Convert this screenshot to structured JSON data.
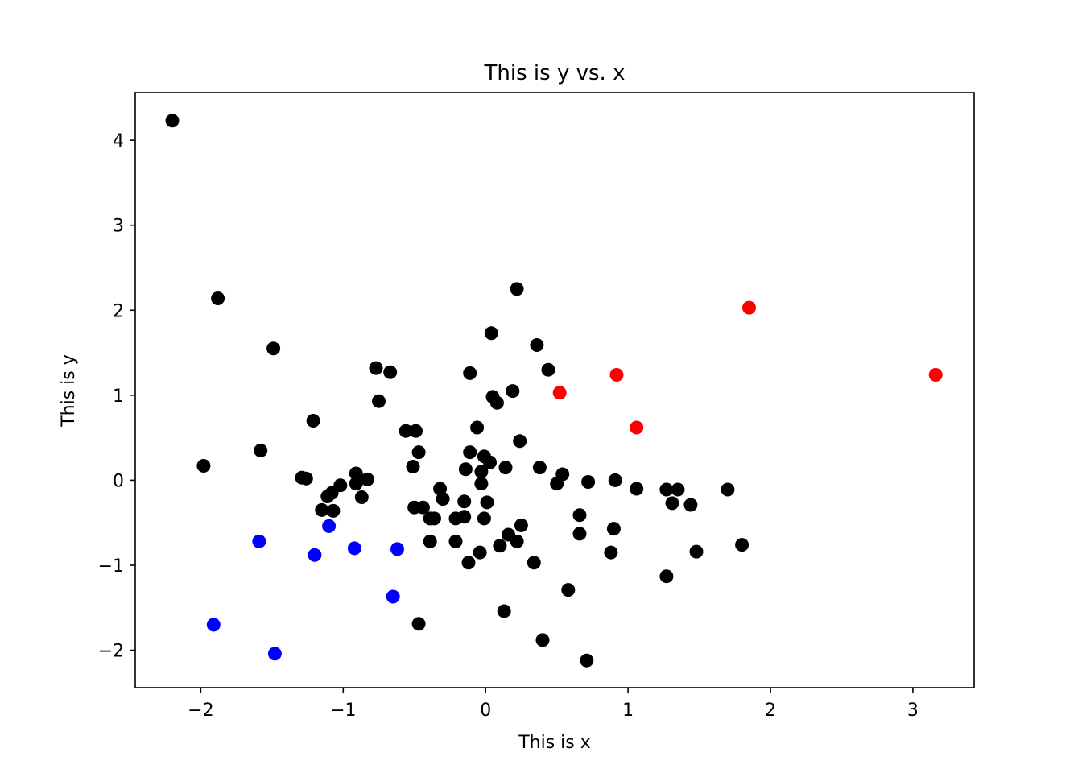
{
  "chart_data": {
    "type": "scatter",
    "title": "This is y vs. x",
    "xlabel": "This is x",
    "ylabel": "This is y",
    "xlim": [
      -2.46,
      3.43
    ],
    "ylim": [
      -2.44,
      4.56
    ],
    "grid": false,
    "x_ticks": [
      -2,
      -1,
      0,
      1,
      2,
      3
    ],
    "x_tick_labels": [
      "−2",
      "−1",
      "0",
      "1",
      "2",
      "3"
    ],
    "y_ticks": [
      -2,
      -1,
      0,
      1,
      2,
      3,
      4
    ],
    "y_tick_labels": [
      "−2",
      "−1",
      "0",
      "1",
      "2",
      "3",
      "4"
    ],
    "series": [
      {
        "color": "#000000",
        "points": [
          [
            -2.2,
            4.23
          ],
          [
            -1.88,
            2.14
          ],
          [
            -1.98,
            0.17
          ],
          [
            -1.58,
            0.35
          ],
          [
            -1.49,
            1.55
          ],
          [
            -1.21,
            0.7
          ],
          [
            -1.29,
            0.03
          ],
          [
            -1.26,
            0.02
          ],
          [
            -1.15,
            -0.35
          ],
          [
            -1.11,
            -0.19
          ],
          [
            -1.08,
            -0.15
          ],
          [
            -1.07,
            -0.36
          ],
          [
            -1.02,
            -0.06
          ],
          [
            -0.91,
            -0.04
          ],
          [
            -0.91,
            0.08
          ],
          [
            -0.87,
            -0.2
          ],
          [
            -0.83,
            0.01
          ],
          [
            -0.77,
            1.32
          ],
          [
            -0.75,
            0.93
          ],
          [
            -0.67,
            1.27
          ],
          [
            -0.56,
            0.58
          ],
          [
            -0.49,
            0.58
          ],
          [
            -0.51,
            0.16
          ],
          [
            -0.47,
            0.33
          ],
          [
            -0.5,
            -0.32
          ],
          [
            -0.44,
            -0.32
          ],
          [
            -0.39,
            -0.45
          ],
          [
            -0.36,
            -0.45
          ],
          [
            -0.32,
            -0.1
          ],
          [
            -0.3,
            -0.22
          ],
          [
            -0.39,
            -0.72
          ],
          [
            -0.47,
            -1.69
          ],
          [
            -0.21,
            -0.45
          ],
          [
            -0.21,
            -0.72
          ],
          [
            -0.15,
            -0.25
          ],
          [
            -0.15,
            -0.43
          ],
          [
            -0.14,
            0.13
          ],
          [
            -0.12,
            -0.97
          ],
          [
            -0.11,
            1.26
          ],
          [
            -0.11,
            0.33
          ],
          [
            -0.06,
            0.62
          ],
          [
            -0.03,
            0.1
          ],
          [
            -0.03,
            -0.04
          ],
          [
            -0.01,
            0.28
          ],
          [
            -0.01,
            -0.45
          ],
          [
            0.01,
            -0.26
          ],
          [
            0.03,
            0.21
          ],
          [
            -0.04,
            -0.85
          ],
          [
            0.04,
            1.73
          ],
          [
            0.05,
            0.98
          ],
          [
            0.08,
            0.91
          ],
          [
            0.1,
            -0.77
          ],
          [
            0.13,
            -1.54
          ],
          [
            0.14,
            0.15
          ],
          [
            0.16,
            -0.64
          ],
          [
            0.19,
            1.05
          ],
          [
            0.22,
            2.25
          ],
          [
            0.24,
            0.46
          ],
          [
            0.22,
            -0.72
          ],
          [
            0.25,
            -0.53
          ],
          [
            0.34,
            -0.97
          ],
          [
            0.36,
            1.59
          ],
          [
            0.38,
            0.15
          ],
          [
            0.4,
            -1.88
          ],
          [
            0.44,
            1.3
          ],
          [
            0.5,
            -0.04
          ],
          [
            0.54,
            0.07
          ],
          [
            0.58,
            -1.29
          ],
          [
            0.66,
            -0.41
          ],
          [
            0.66,
            -0.63
          ],
          [
            0.72,
            -0.02
          ],
          [
            0.71,
            -2.12
          ],
          [
            0.88,
            -0.85
          ],
          [
            0.91,
            0.0
          ],
          [
            0.9,
            -0.57
          ],
          [
            1.06,
            -0.1
          ],
          [
            1.27,
            -0.11
          ],
          [
            1.31,
            -0.27
          ],
          [
            1.35,
            -0.11
          ],
          [
            1.27,
            -1.13
          ],
          [
            1.44,
            -0.29
          ],
          [
            1.48,
            -0.84
          ],
          [
            1.7,
            -0.11
          ],
          [
            1.8,
            -0.76
          ]
        ]
      },
      {
        "color": "#ff0000",
        "points": [
          [
            0.52,
            1.03
          ],
          [
            0.92,
            1.24
          ],
          [
            1.06,
            0.62
          ],
          [
            1.85,
            2.03
          ],
          [
            3.16,
            1.24
          ]
        ]
      },
      {
        "color": "#0000ff",
        "points": [
          [
            -1.91,
            -1.7
          ],
          [
            -1.59,
            -0.72
          ],
          [
            -1.48,
            -2.04
          ],
          [
            -1.2,
            -0.88
          ],
          [
            -1.1,
            -0.54
          ],
          [
            -0.92,
            -0.8
          ],
          [
            -0.65,
            -1.37
          ],
          [
            -0.62,
            -0.81
          ]
        ]
      }
    ]
  }
}
